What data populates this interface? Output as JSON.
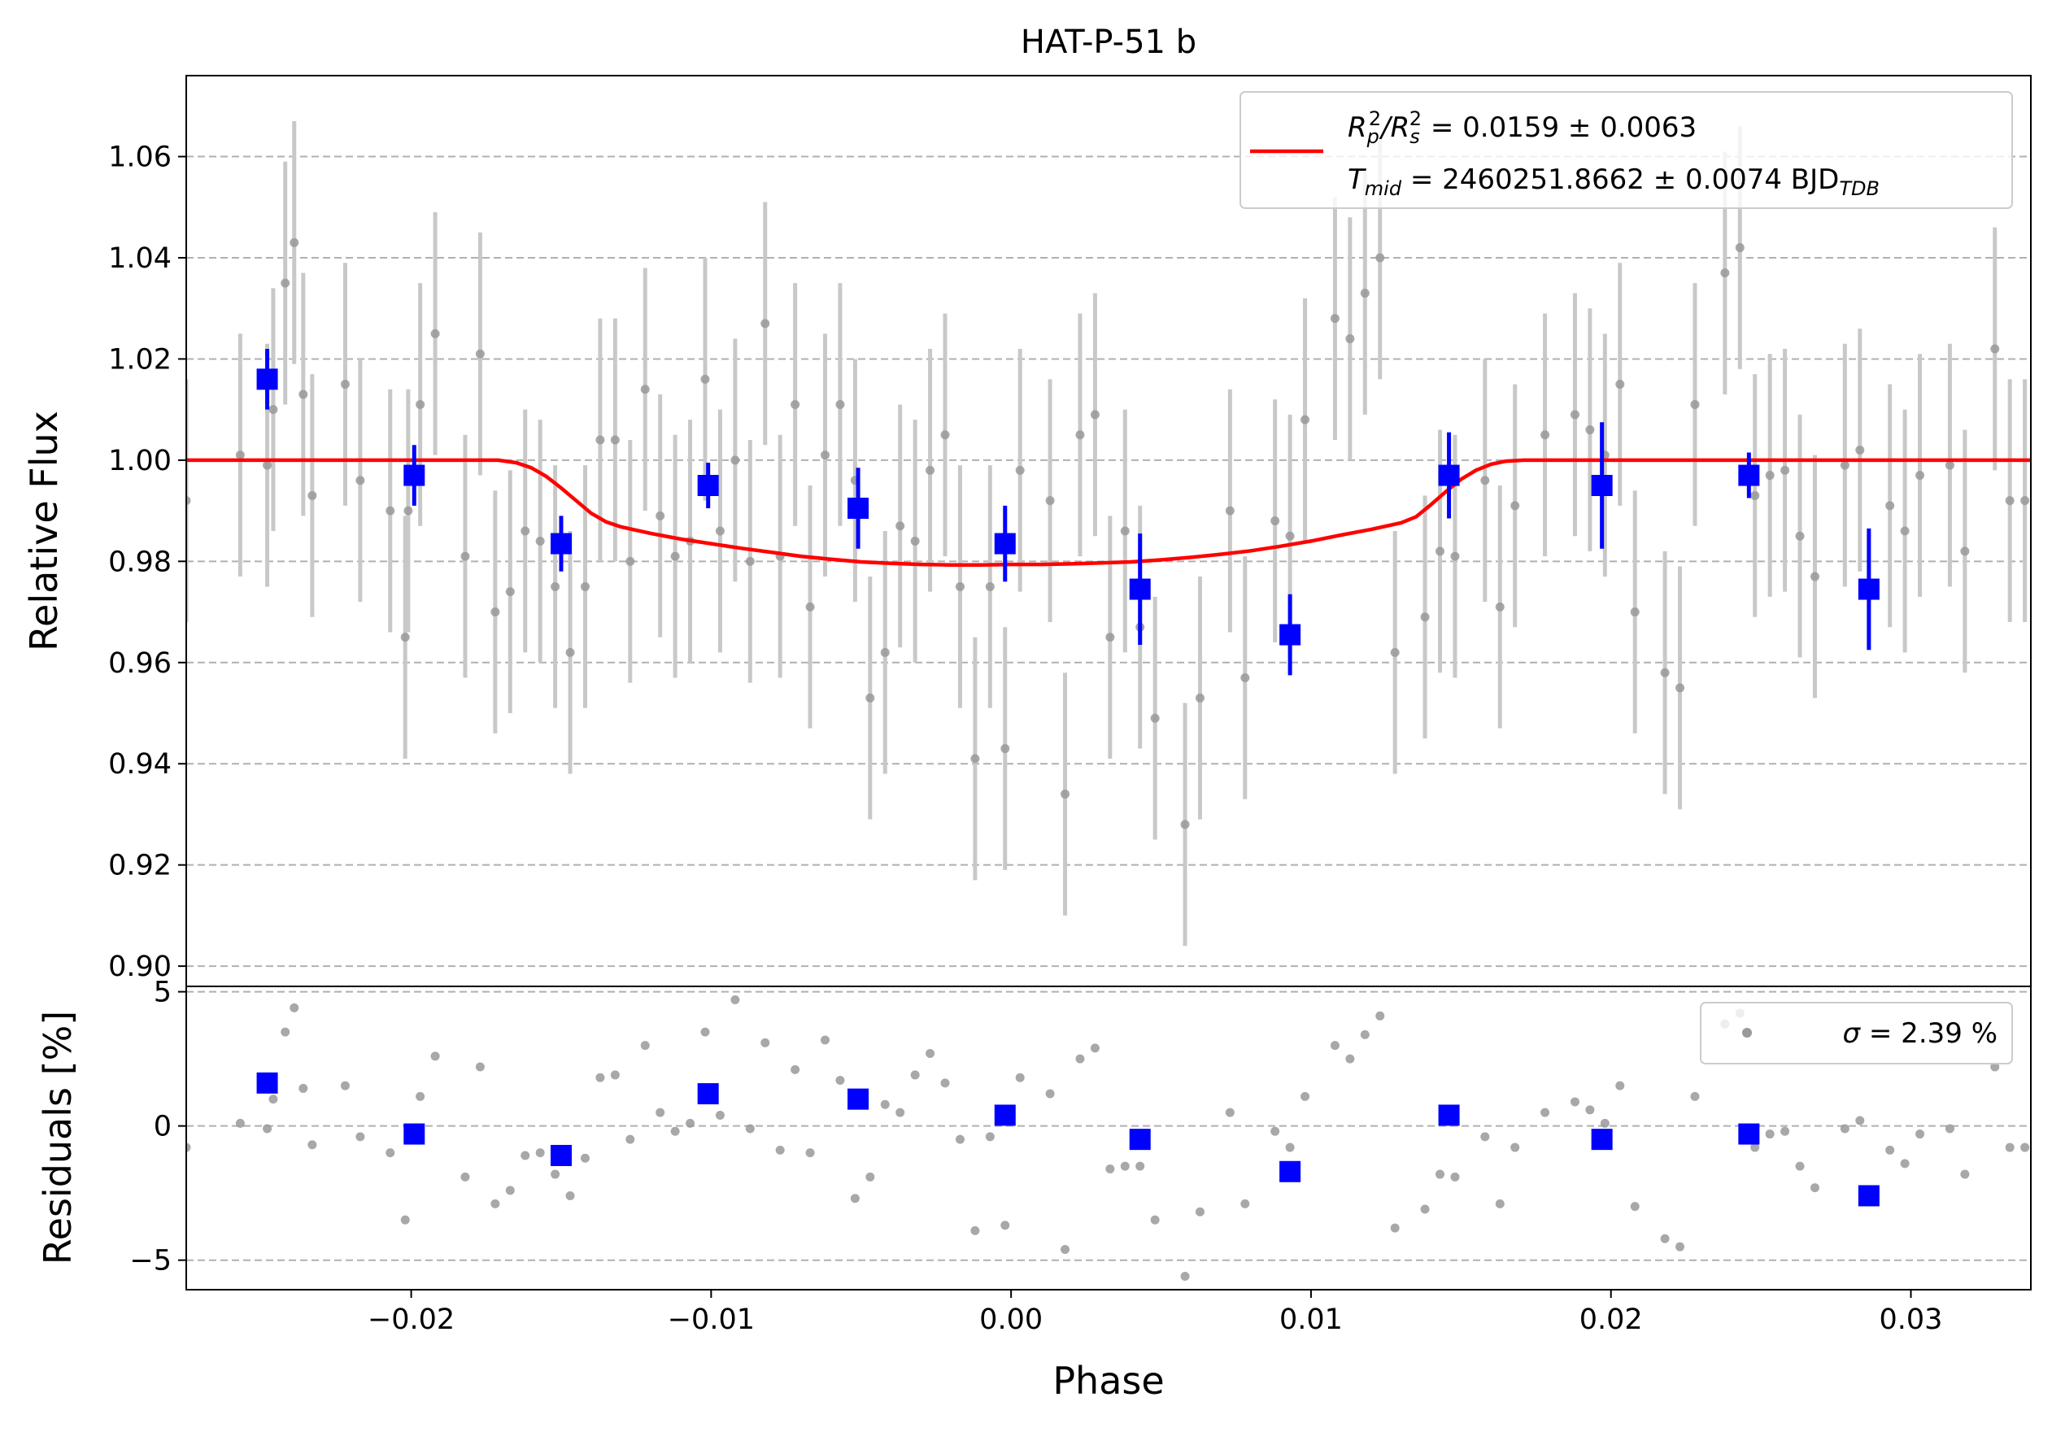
{
  "chart_data": {
    "type": "scatter",
    "title": "HAT-P-51 b",
    "xlabel": "Phase",
    "xlim": [
      -0.0275,
      0.034
    ],
    "x_ticks": [
      -0.02,
      -0.01,
      0.0,
      0.01,
      0.02,
      0.03
    ],
    "x_tick_labels": [
      "−0.02",
      "−0.01",
      "0.00",
      "0.01",
      "0.02",
      "0.03"
    ],
    "grid": "horizontal dashed",
    "colors": {
      "raw": "#999999",
      "raw_err": "#c8c8c8",
      "binned": "#0000ff",
      "model": "#ff0000",
      "grid": "#b0b0b0"
    },
    "top_panel": {
      "ylabel": "Relative Flux",
      "ylim": [
        0.896,
        1.076
      ],
      "y_ticks": [
        0.9,
        0.92,
        0.94,
        0.96,
        0.98,
        1.0,
        1.02,
        1.04,
        1.06
      ],
      "y_tick_labels": [
        "0.90",
        "0.92",
        "0.94",
        "0.96",
        "0.98",
        "1.00",
        "1.02",
        "1.04",
        "1.06"
      ],
      "legend": {
        "placement": "upper right",
        "line1": {
          "prefix": "R",
          "sub1": "p",
          "sup1": "2",
          "slash": "/R",
          "sub2": "s",
          "sup2": "2",
          "rest": " = 0.0159 ± 0.0063"
        },
        "line2": {
          "prefix": "T",
          "sub1": "mid",
          "rest": " = 2460251.8662 ± 0.0074 BJD",
          "sub2": "TDB"
        }
      },
      "model": {
        "name": "transit model",
        "x": [
          -0.0275,
          -0.0171,
          -0.0165,
          -0.016,
          -0.0155,
          -0.015,
          -0.0145,
          -0.014,
          -0.0135,
          -0.013,
          -0.012,
          -0.011,
          -0.01,
          -0.009,
          -0.008,
          -0.007,
          -0.006,
          -0.005,
          -0.004,
          -0.003,
          -0.002,
          -0.001,
          0.0,
          0.001,
          0.002,
          0.003,
          0.004,
          0.005,
          0.006,
          0.007,
          0.008,
          0.009,
          0.01,
          0.011,
          0.012,
          0.013,
          0.0135,
          0.014,
          0.0145,
          0.015,
          0.0155,
          0.016,
          0.0165,
          0.0171,
          0.034
        ],
        "y": [
          1.0,
          1.0,
          0.9995,
          0.9985,
          0.9968,
          0.9945,
          0.992,
          0.9895,
          0.9878,
          0.9868,
          0.9855,
          0.9844,
          0.9835,
          0.9826,
          0.9818,
          0.981,
          0.9804,
          0.9799,
          0.9796,
          0.9794,
          0.9793,
          0.9793,
          0.9794,
          0.9794,
          0.9795,
          0.9797,
          0.9799,
          0.9803,
          0.9808,
          0.9814,
          0.9821,
          0.983,
          0.984,
          0.9852,
          0.9863,
          0.9876,
          0.9888,
          0.9912,
          0.9938,
          0.9962,
          0.998,
          0.9992,
          0.9998,
          1.0,
          1.0
        ]
      },
      "raw": {
        "x": [
          -0.0275,
          -0.0257,
          -0.0248,
          -0.0246,
          -0.0242,
          -0.0239,
          -0.0236,
          -0.0233,
          -0.0222,
          -0.0217,
          -0.0207,
          -0.0202,
          -0.0201,
          -0.0197,
          -0.0192,
          -0.0182,
          -0.0177,
          -0.0172,
          -0.0167,
          -0.0162,
          -0.0157,
          -0.0152,
          -0.0147,
          -0.0142,
          -0.0137,
          -0.0132,
          -0.0127,
          -0.0122,
          -0.0117,
          -0.0112,
          -0.0107,
          -0.0102,
          -0.0097,
          -0.0092,
          -0.0087,
          -0.0082,
          -0.0077,
          -0.0072,
          -0.0067,
          -0.0062,
          -0.0057,
          -0.0052,
          -0.0047,
          -0.0042,
          -0.0037,
          -0.0032,
          -0.0027,
          -0.0022,
          -0.0017,
          -0.0012,
          -0.0007,
          -0.0002,
          0.0003,
          0.0013,
          0.0018,
          0.0023,
          0.0028,
          0.0033,
          0.0038,
          0.0043,
          0.0048,
          0.0058,
          0.0063,
          0.0073,
          0.0078,
          0.0088,
          0.0093,
          0.0098,
          0.0108,
          0.0113,
          0.0118,
          0.0123,
          0.0128,
          0.0138,
          0.0143,
          0.0148,
          0.0158,
          0.0163,
          0.0168,
          0.0178,
          0.0188,
          0.0193,
          0.0198,
          0.0203,
          0.0208,
          0.0218,
          0.0223,
          0.0228,
          0.0238,
          0.0243,
          0.0248,
          0.0253,
          0.0258,
          0.0263,
          0.0268,
          0.0278,
          0.0283,
          0.0293,
          0.0298,
          0.0303,
          0.0313,
          0.0318,
          0.0328,
          0.0333,
          0.0338
        ],
        "y": [
          0.992,
          1.001,
          0.999,
          1.01,
          1.035,
          1.043,
          1.013,
          0.993,
          1.015,
          0.996,
          0.99,
          0.965,
          0.99,
          1.011,
          1.025,
          0.981,
          1.021,
          0.97,
          0.974,
          0.986,
          0.984,
          0.975,
          0.962,
          0.975,
          1.004,
          1.004,
          0.98,
          1.014,
          0.989,
          0.981,
          0.984,
          1.016,
          0.986,
          1.0,
          0.98,
          1.027,
          0.981,
          1.011,
          0.971,
          1.001,
          1.011,
          0.996,
          0.953,
          0.962,
          0.987,
          0.984,
          0.998,
          1.005,
          0.975,
          0.941,
          0.975,
          0.943,
          0.998,
          0.992,
          0.934,
          1.005,
          1.009,
          0.965,
          0.986,
          0.967,
          0.949,
          0.928,
          0.953,
          0.99,
          0.957,
          0.988,
          0.985,
          1.008,
          1.028,
          1.024,
          1.033,
          1.04,
          0.962,
          0.969,
          0.982,
          0.981,
          0.996,
          0.971,
          0.991,
          1.005,
          1.009,
          1.006,
          1.001,
          1.015,
          0.97,
          0.958,
          0.955,
          1.011,
          1.037,
          1.042,
          0.993,
          0.997,
          0.998,
          0.985,
          0.977,
          0.999,
          1.002,
          0.991,
          0.986,
          0.997,
          0.999,
          0.982,
          1.022,
          0.992,
          0.992
        ],
        "err": [
          0.024,
          0.024,
          0.024,
          0.024,
          0.024,
          0.024,
          0.024,
          0.024,
          0.024,
          0.024,
          0.024,
          0.024,
          0.024,
          0.024,
          0.024,
          0.024,
          0.024,
          0.024,
          0.024,
          0.024,
          0.024,
          0.024,
          0.024,
          0.024,
          0.024,
          0.024,
          0.024,
          0.024,
          0.024,
          0.024,
          0.024,
          0.024,
          0.024,
          0.024,
          0.024,
          0.024,
          0.024,
          0.024,
          0.024,
          0.024,
          0.024,
          0.024,
          0.024,
          0.024,
          0.024,
          0.024,
          0.024,
          0.024,
          0.024,
          0.024,
          0.024,
          0.024,
          0.024,
          0.024,
          0.024,
          0.024,
          0.024,
          0.024,
          0.024,
          0.024,
          0.024,
          0.024,
          0.024,
          0.024,
          0.024,
          0.024,
          0.024,
          0.024,
          0.024,
          0.024,
          0.024,
          0.024,
          0.024,
          0.024,
          0.024,
          0.024,
          0.024,
          0.024,
          0.024,
          0.024,
          0.024,
          0.024,
          0.024,
          0.024,
          0.024,
          0.024,
          0.024,
          0.024,
          0.024,
          0.024,
          0.024,
          0.024,
          0.024,
          0.024,
          0.024,
          0.024,
          0.024,
          0.024,
          0.024,
          0.024,
          0.024,
          0.024,
          0.024,
          0.024,
          0.024
        ]
      },
      "binned": {
        "x": [
          -0.0248,
          -0.0199,
          -0.015,
          -0.0101,
          -0.0051,
          -0.0002,
          0.0043,
          0.0093,
          0.0146,
          0.0197,
          0.0246,
          0.0286
        ],
        "y": [
          1.016,
          0.997,
          0.9835,
          0.995,
          0.9905,
          0.9835,
          0.9745,
          0.9655,
          0.997,
          0.995,
          0.997,
          0.9745
        ],
        "err": [
          0.006,
          0.006,
          0.0055,
          0.0045,
          0.008,
          0.0075,
          0.011,
          0.008,
          0.0085,
          0.0125,
          0.0045,
          0.012
        ]
      }
    },
    "bottom_panel": {
      "ylabel": "Residuals [%]",
      "ylim": [
        -6.1,
        5.2
      ],
      "y_ticks": [
        -5,
        0,
        5
      ],
      "y_tick_labels": [
        "−5",
        "0",
        "5"
      ],
      "legend": {
        "placement": "upper right",
        "text": " = 2.39 %",
        "sigma": "σ"
      },
      "raw_residuals": [
        -0.8,
        0.1,
        -0.1,
        1.0,
        3.5,
        4.4,
        1.4,
        -0.7,
        1.5,
        -0.4,
        -1.0,
        -3.5,
        -0.3,
        1.1,
        2.6,
        -1.9,
        2.2,
        -2.9,
        -2.4,
        -1.1,
        -1.0,
        -1.8,
        -2.6,
        -1.2,
        1.8,
        1.9,
        -0.5,
        3.0,
        0.5,
        -0.2,
        0.1,
        3.5,
        0.4,
        4.7,
        -0.1,
        3.1,
        -0.9,
        2.1,
        -1.0,
        3.2,
        1.7,
        -2.7,
        -1.9,
        0.8,
        0.5,
        1.9,
        2.7,
        1.6,
        -0.5,
        -3.9,
        -0.4,
        -3.7,
        1.8,
        1.2,
        -4.6,
        2.5,
        2.9,
        -1.6,
        -1.5,
        -1.5,
        -3.5,
        -5.6,
        -3.2,
        0.5,
        -2.9,
        -0.2,
        -0.8,
        1.1,
        3.0,
        2.5,
        3.4,
        4.1,
        -3.8,
        -3.1,
        -1.8,
        -1.9,
        -0.4,
        -2.9,
        -0.8,
        0.5,
        0.9,
        0.6,
        0.1,
        1.5,
        -3.0,
        -4.2,
        -4.5,
        1.1,
        3.8,
        4.2,
        -0.8,
        -0.3,
        -0.2,
        -1.5,
        -2.3,
        -0.1,
        0.2,
        -0.9,
        -1.4,
        -0.3,
        -0.1,
        -1.8,
        2.2,
        -0.8,
        -0.8
      ],
      "binned_residuals": [
        1.6,
        -0.3,
        -1.1,
        1.2,
        1.0,
        0.4,
        -0.5,
        -1.7,
        0.4,
        -0.5,
        -0.3,
        -2.6
      ]
    }
  }
}
